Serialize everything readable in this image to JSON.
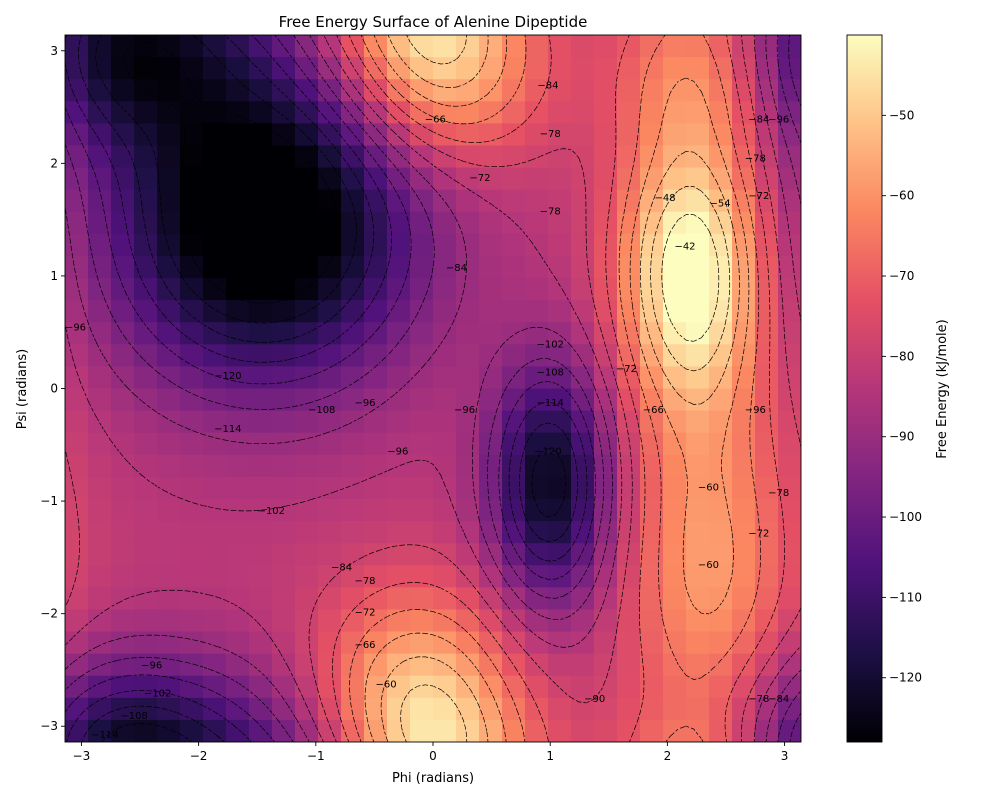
{
  "chart_data": {
    "type": "heatmap",
    "title": "Free Energy Surface of Alenine Dipeptide",
    "xlabel": "Phi (radians)",
    "ylabel": "Psi (radians)",
    "colorbar_label": "Free Energy (kJ/mole)",
    "colormap": "magma",
    "xlim": [
      -3.14,
      3.14
    ],
    "ylim": [
      -3.14,
      3.14
    ],
    "x_ticks": [
      -3,
      -2,
      -1,
      0,
      1,
      2,
      3
    ],
    "y_ticks": [
      -3,
      -2,
      -1,
      0,
      1,
      2,
      3
    ],
    "x_tick_labels": [
      "−3",
      "−2",
      "−1",
      "0",
      "1",
      "2",
      "3"
    ],
    "y_tick_labels": [
      "−3",
      "−2",
      "−1",
      "0",
      "1",
      "2",
      "3"
    ],
    "color_range": [
      -128,
      -40
    ],
    "colorbar_ticks": [
      -50,
      -60,
      -70,
      -80,
      -90,
      -100,
      -110,
      -120
    ],
    "colorbar_tick_labels": [
      "−50",
      "−60",
      "−70",
      "−80",
      "−90",
      "−100",
      "−110",
      "−120"
    ],
    "grid": false,
    "contour_style": "black dashed",
    "contour_labels": [
      {
        "text": "−114",
        "phi": -2.8,
        "psi": -3.07
      },
      {
        "text": "−108",
        "phi": -2.55,
        "psi": -2.9
      },
      {
        "text": "−102",
        "phi": -2.35,
        "psi": -2.7
      },
      {
        "text": "−96",
        "phi": -2.4,
        "psi": -2.45
      },
      {
        "text": "−96",
        "phi": -3.05,
        "psi": 0.55
      },
      {
        "text": "−120",
        "phi": -1.75,
        "psi": 0.12
      },
      {
        "text": "−114",
        "phi": -1.75,
        "psi": -0.35
      },
      {
        "text": "−108",
        "phi": -0.95,
        "psi": -0.18
      },
      {
        "text": "−102",
        "phi": -1.38,
        "psi": -1.08
      },
      {
        "text": "−96",
        "phi": -0.58,
        "psi": -0.12
      },
      {
        "text": "−96",
        "phi": -0.3,
        "psi": -0.55
      },
      {
        "text": "−84",
        "phi": -0.78,
        "psi": -1.58
      },
      {
        "text": "−78",
        "phi": -0.58,
        "psi": -1.7
      },
      {
        "text": "−72",
        "phi": -0.58,
        "psi": -1.98
      },
      {
        "text": "−66",
        "phi": -0.58,
        "psi": -2.27
      },
      {
        "text": "−60",
        "phi": -0.4,
        "psi": -2.62
      },
      {
        "text": "−66",
        "phi": 0.02,
        "psi": 2.4
      },
      {
        "text": "−72",
        "phi": 0.4,
        "psi": 1.88
      },
      {
        "text": "−84",
        "phi": 0.2,
        "psi": 1.08
      },
      {
        "text": "−84",
        "phi": 0.98,
        "psi": 2.7
      },
      {
        "text": "−78",
        "phi": 1.0,
        "psi": 2.27
      },
      {
        "text": "−78",
        "phi": 1.0,
        "psi": 1.58
      },
      {
        "text": "−102",
        "phi": 1.0,
        "psi": 0.4
      },
      {
        "text": "−108",
        "phi": 1.0,
        "psi": 0.15
      },
      {
        "text": "−114",
        "phi": 1.0,
        "psi": -0.12
      },
      {
        "text": "−120",
        "phi": 0.98,
        "psi": -0.55
      },
      {
        "text": "−96",
        "phi": 0.27,
        "psi": -0.18
      },
      {
        "text": "−72",
        "phi": 1.65,
        "psi": 0.18
      },
      {
        "text": "−66",
        "phi": 1.88,
        "psi": -0.18
      },
      {
        "text": "−60",
        "phi": 2.35,
        "psi": -0.87
      },
      {
        "text": "−60",
        "phi": 2.35,
        "psi": -1.56
      },
      {
        "text": "−48",
        "phi": 1.98,
        "psi": 1.7
      },
      {
        "text": "−42",
        "phi": 2.15,
        "psi": 1.27
      },
      {
        "text": "−54",
        "phi": 2.45,
        "psi": 1.65
      },
      {
        "text": "−72",
        "phi": 2.78,
        "psi": 1.72
      },
      {
        "text": "−78",
        "phi": 2.75,
        "psi": 2.05
      },
      {
        "text": "−84",
        "phi": 2.78,
        "psi": 2.4
      },
      {
        "text": "−96",
        "phi": 2.95,
        "psi": 2.4
      },
      {
        "text": "−96",
        "phi": 2.75,
        "psi": -0.18
      },
      {
        "text": "−78",
        "phi": 2.95,
        "psi": -0.92
      },
      {
        "text": "−72",
        "phi": 2.78,
        "psi": -1.28
      },
      {
        "text": "−90",
        "phi": 1.38,
        "psi": -2.75
      },
      {
        "text": "−78",
        "phi": 2.78,
        "psi": -2.75
      },
      {
        "text": "−84",
        "phi": 2.95,
        "psi": -2.75
      }
    ]
  }
}
